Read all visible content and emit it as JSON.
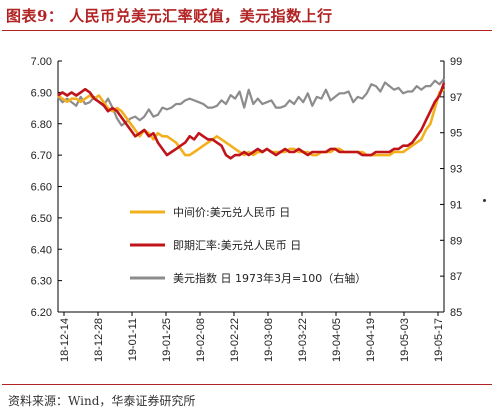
{
  "title": "图表9： 人民币兑美元汇率贬值，美元指数上行",
  "source": "资料来源：Wind，华泰证券研究所",
  "chart_data": {
    "type": "line",
    "x_ticks": [
      "18-12-14",
      "18-12-28",
      "19-01-11",
      "19-01-25",
      "19-02-08",
      "19-02-22",
      "19-03-08",
      "19-03-22",
      "19-04-05",
      "19-04-19",
      "19-05-03",
      "19-05-17"
    ],
    "ylim_left": [
      6.2,
      7.0
    ],
    "y_ticks_left": [
      "7.00",
      "6.90",
      "6.80",
      "6.70",
      "6.60",
      "6.50",
      "6.40",
      "6.30",
      "6.20"
    ],
    "ylim_right": [
      85,
      99
    ],
    "y_ticks_right": [
      "99",
      "97",
      "95",
      "93",
      "91",
      "89",
      "87",
      "85"
    ],
    "legend_position": "center-left",
    "series": [
      {
        "name": "中间价:美元兑人民币 日",
        "axis": "left",
        "color": "#f2b01e",
        "values": [
          6.89,
          6.88,
          6.87,
          6.88,
          6.88,
          6.87,
          6.88,
          6.89,
          6.88,
          6.89,
          6.87,
          6.85,
          6.84,
          6.85,
          6.84,
          6.82,
          6.8,
          6.78,
          6.76,
          6.78,
          6.77,
          6.75,
          6.77,
          6.76,
          6.76,
          6.75,
          6.74,
          6.72,
          6.7,
          6.7,
          6.71,
          6.72,
          6.73,
          6.74,
          6.75,
          6.76,
          6.75,
          6.74,
          6.73,
          6.72,
          6.71,
          6.7,
          6.71,
          6.7,
          6.71,
          6.71,
          6.72,
          6.71,
          6.71,
          6.71,
          6.71,
          6.72,
          6.72,
          6.71,
          6.71,
          6.71,
          6.7,
          6.7,
          6.71,
          6.71,
          6.71,
          6.72,
          6.72,
          6.71,
          6.71,
          6.71,
          6.71,
          6.71,
          6.7,
          6.7,
          6.7,
          6.7,
          6.7,
          6.7,
          6.71,
          6.71,
          6.71,
          6.72,
          6.73,
          6.74,
          6.75,
          6.78,
          6.8,
          6.85,
          6.9,
          6.91
        ]
      },
      {
        "name": "即期汇率:美元兑人民币 日",
        "axis": "left",
        "color": "#c0141a",
        "values": [
          6.89,
          6.9,
          6.89,
          6.9,
          6.89,
          6.9,
          6.91,
          6.9,
          6.88,
          6.87,
          6.86,
          6.84,
          6.85,
          6.84,
          6.82,
          6.8,
          6.78,
          6.76,
          6.77,
          6.78,
          6.76,
          6.77,
          6.74,
          6.72,
          6.7,
          6.71,
          6.72,
          6.73,
          6.74,
          6.76,
          6.75,
          6.77,
          6.76,
          6.75,
          6.75,
          6.74,
          6.73,
          6.7,
          6.69,
          6.7,
          6.7,
          6.71,
          6.7,
          6.71,
          6.72,
          6.71,
          6.72,
          6.71,
          6.7,
          6.71,
          6.72,
          6.71,
          6.71,
          6.72,
          6.71,
          6.7,
          6.71,
          6.71,
          6.71,
          6.71,
          6.72,
          6.72,
          6.71,
          6.71,
          6.71,
          6.71,
          6.71,
          6.7,
          6.7,
          6.7,
          6.71,
          6.71,
          6.71,
          6.71,
          6.72,
          6.72,
          6.73,
          6.73,
          6.74,
          6.76,
          6.78,
          6.81,
          6.84,
          6.87,
          6.89,
          6.93
        ]
      },
      {
        "name": "美元指数 日 1973年3月=100（右轴）",
        "axis": "right",
        "color": "#8c8c8c",
        "values": [
          97.0,
          96.7,
          96.9,
          96.7,
          96.5,
          97.0,
          96.6,
          96.7,
          97.0,
          96.7,
          96.5,
          96.9,
          96.4,
          95.8,
          95.4,
          95.6,
          95.8,
          95.9,
          95.7,
          95.9,
          96.3,
          95.9,
          96.0,
          96.4,
          96.3,
          96.4,
          96.6,
          96.6,
          96.8,
          96.9,
          96.8,
          96.7,
          96.6,
          96.4,
          96.4,
          96.5,
          96.8,
          96.6,
          97.1,
          96.9,
          97.3,
          96.4,
          97.4,
          96.6,
          96.9,
          96.6,
          96.7,
          96.8,
          96.4,
          96.4,
          96.5,
          96.8,
          96.6,
          97.0,
          96.7,
          97.2,
          96.5,
          97.0,
          96.9,
          97.4,
          96.8,
          97.0,
          97.2,
          97.2,
          97.3,
          96.7,
          97.0,
          96.9,
          97.2,
          97.7,
          97.6,
          97.3,
          97.8,
          97.6,
          97.4,
          97.5,
          97.2,
          97.3,
          97.3,
          97.6,
          97.4,
          97.6,
          97.6,
          97.9,
          97.7,
          98.0
        ]
      }
    ]
  }
}
